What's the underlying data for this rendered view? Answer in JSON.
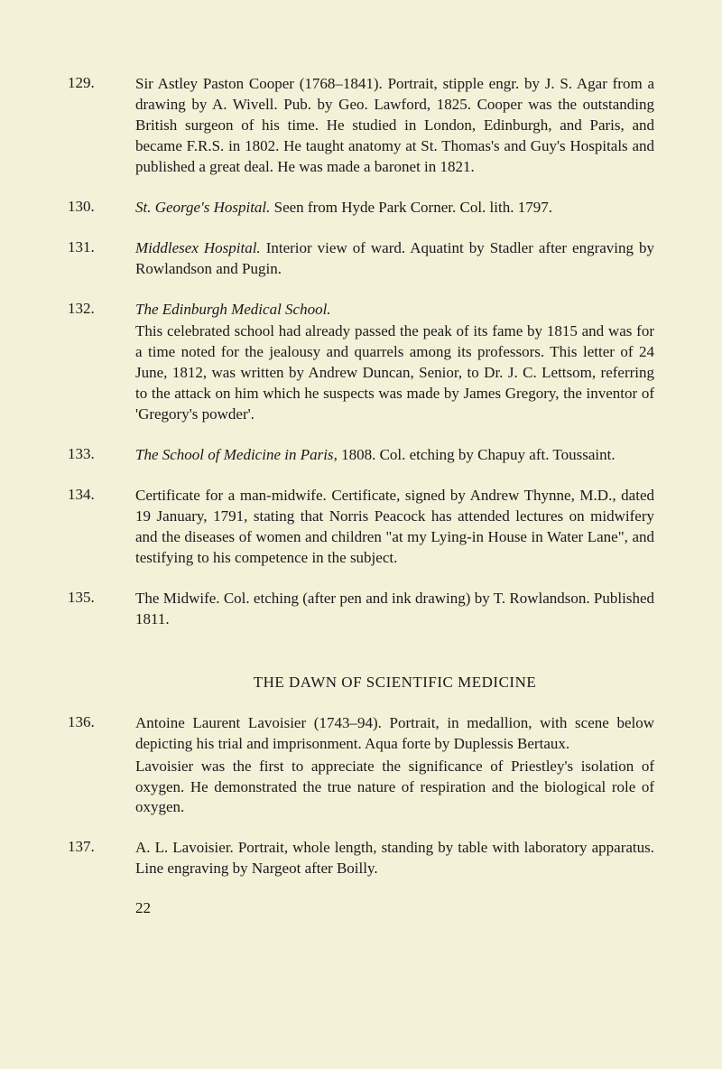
{
  "entries": [
    {
      "number": "129.",
      "text": "Sir Astley Paston Cooper (1768–1841). Portrait, stipple engr. by J. S. Agar from a drawing by A. Wivell. Pub. by Geo. Lawford, 1825. Cooper was the outstanding British surgeon of his time. He studied in London, Edinburgh, and Paris, and became F.R.S. in 1802. He taught anatomy at St. Thomas's and Guy's Hospitals and published a great deal. He was made a baronet in 1821."
    },
    {
      "number": "130.",
      "prefix_italic": "St. George's Hospital.",
      "text_after": " Seen from Hyde Park Corner. Col. lith. 1797."
    },
    {
      "number": "131.",
      "prefix_italic": "Middlesex Hospital.",
      "text_after": " Interior view of ward. Aquatint by Stadler after engraving by Rowlandson and Pugin."
    },
    {
      "number": "132.",
      "prefix_italic": "The Edinburgh Medical School.",
      "para2": "This celebrated school had already passed the peak of its fame by 1815 and was for a time noted for the jealousy and quarrels among its professors. This letter of 24 June, 1812, was written by Andrew Duncan, Senior, to Dr. J. C. Lettsom, referring to the attack on him which he suspects was made by James Gregory, the inventor of 'Gregory's powder'."
    },
    {
      "number": "133.",
      "prefix_italic": "The School of Medicine in Paris",
      "text_after": ", 1808. Col. etching by Chapuy aft. Toussaint."
    },
    {
      "number": "134.",
      "text": "Certificate for a man-midwife. Certificate, signed by Andrew Thynne, M.D., dated 19 January, 1791, stating that Norris Peacock has attended lectures on midwifery and the diseases of women and children \"at my Lying-in House in Water Lane\", and testifying to his competence in the subject."
    },
    {
      "number": "135.",
      "text": "The Midwife. Col. etching (after pen and ink drawing) by T. Rowlandson. Published 1811."
    }
  ],
  "section_heading": "THE DAWN OF SCIENTIFIC MEDICINE",
  "entries2": [
    {
      "number": "136.",
      "para1": "Antoine Laurent Lavoisier (1743–94). Portrait, in medallion, with scene below depicting his trial and imprisonment. Aqua forte by Duplessis Bertaux.",
      "para2": "Lavoisier was the first to appreciate the significance of Priestley's isolation of oxygen. He demonstrated the true nature of respiration and the biological role of oxygen."
    },
    {
      "number": "137.",
      "text": "A. L. Lavoisier. Portrait, whole length, standing by table with laboratory apparatus. Line engraving by Nargeot after Boilly."
    }
  ],
  "page_number": "22"
}
